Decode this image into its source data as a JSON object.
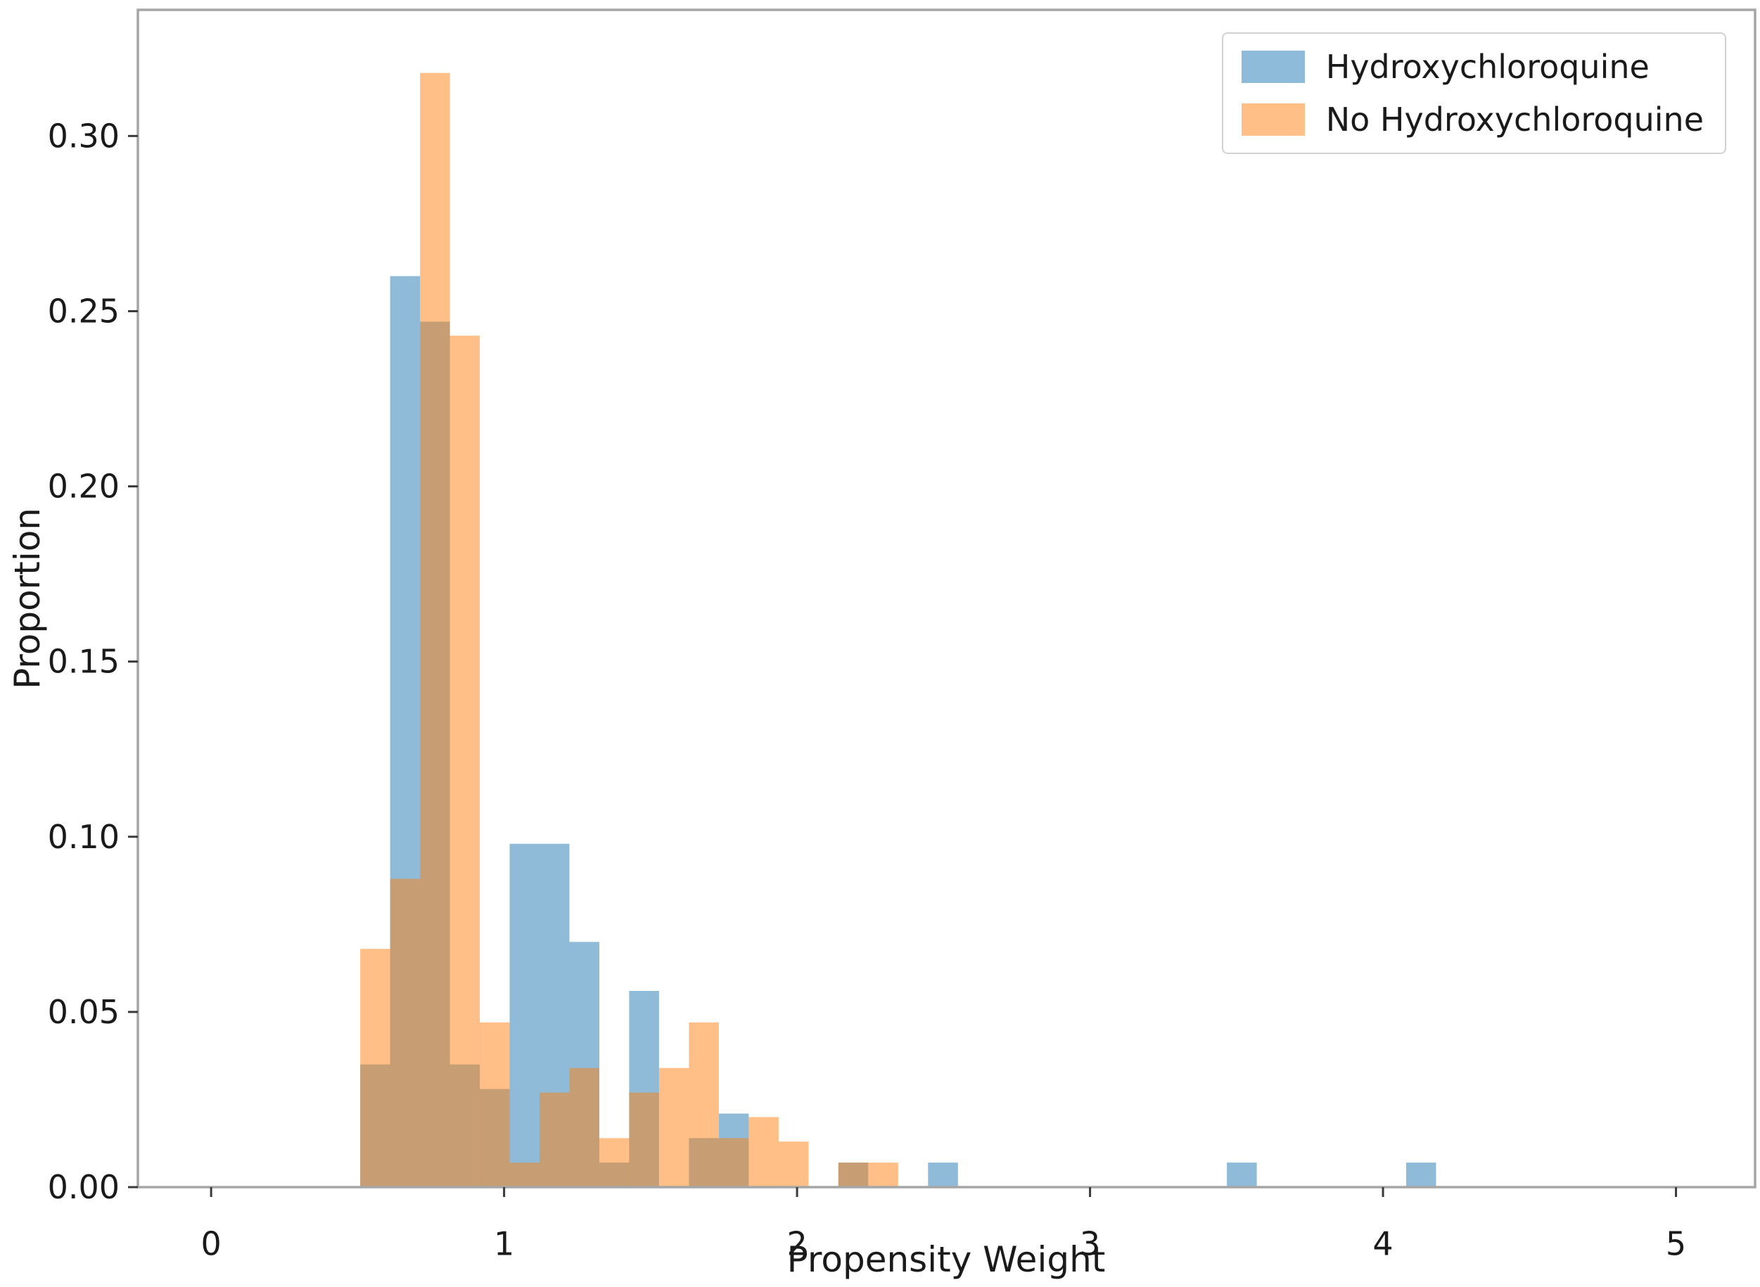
{
  "figure": {
    "xlabel": "Propensity Weight",
    "ylabel": "Proportion"
  },
  "legend": {
    "position": "upper right",
    "items": [
      {
        "label": "Hydroxychloroquine",
        "color": "#8FBBDA"
      },
      {
        "label": "No Hydroxychloroquine",
        "color": "#FFBF86"
      }
    ]
  },
  "colors": {
    "background": "#ffffff",
    "spine": "#a6a6a6",
    "tick_mark": "#3a3a3a",
    "text": "#1a1a1a",
    "overlap_observed": "#C79D74"
  },
  "chart_data": {
    "type": "bar",
    "subtype": "overlaid-histogram",
    "title": "",
    "xlabel": "Propensity Weight",
    "ylabel": "Proportion",
    "grid": false,
    "legend_position": "upper right",
    "bin_start": 0.509,
    "bin_width": 0.102,
    "bin_count": 36,
    "xlim": [
      -0.25,
      5.27
    ],
    "ylim": [
      0,
      0.336
    ],
    "xticks": [
      "0",
      "1",
      "2",
      "3",
      "4",
      "5"
    ],
    "xtick_values": [
      0,
      1,
      2,
      3,
      4,
      5
    ],
    "ytick_labels": [
      "0.00",
      "0.05",
      "0.10",
      "0.15",
      "0.20",
      "0.25",
      "0.30"
    ],
    "ytick_values": [
      0,
      0.05,
      0.1,
      0.15,
      0.2,
      0.25,
      0.3
    ],
    "series": [
      {
        "name": "Hydroxychloroquine",
        "base_color": "#1f77b4",
        "fill_opacity": 0.5,
        "values": [
          0.035,
          0.26,
          0.247,
          0.035,
          0.028,
          0.098,
          0.098,
          0.07,
          0.007,
          0.056,
          0,
          0.014,
          0.021,
          0,
          0,
          0,
          0.007,
          0,
          0,
          0.007,
          0,
          0,
          0,
          0,
          0,
          0,
          0,
          0,
          0,
          0.007,
          0,
          0,
          0,
          0,
          0,
          0.007
        ]
      },
      {
        "name": "No Hydroxychloroquine",
        "base_color": "#ff7f0e",
        "fill_opacity": 0.5,
        "values": [
          0.068,
          0.088,
          0.318,
          0.243,
          0.047,
          0.007,
          0.027,
          0.034,
          0.014,
          0.027,
          0.034,
          0.047,
          0.014,
          0.02,
          0.013,
          0,
          0.007,
          0.007,
          0,
          0,
          0,
          0,
          0,
          0,
          0,
          0,
          0,
          0,
          0,
          0,
          0,
          0,
          0,
          0,
          0,
          0
        ]
      }
    ]
  }
}
